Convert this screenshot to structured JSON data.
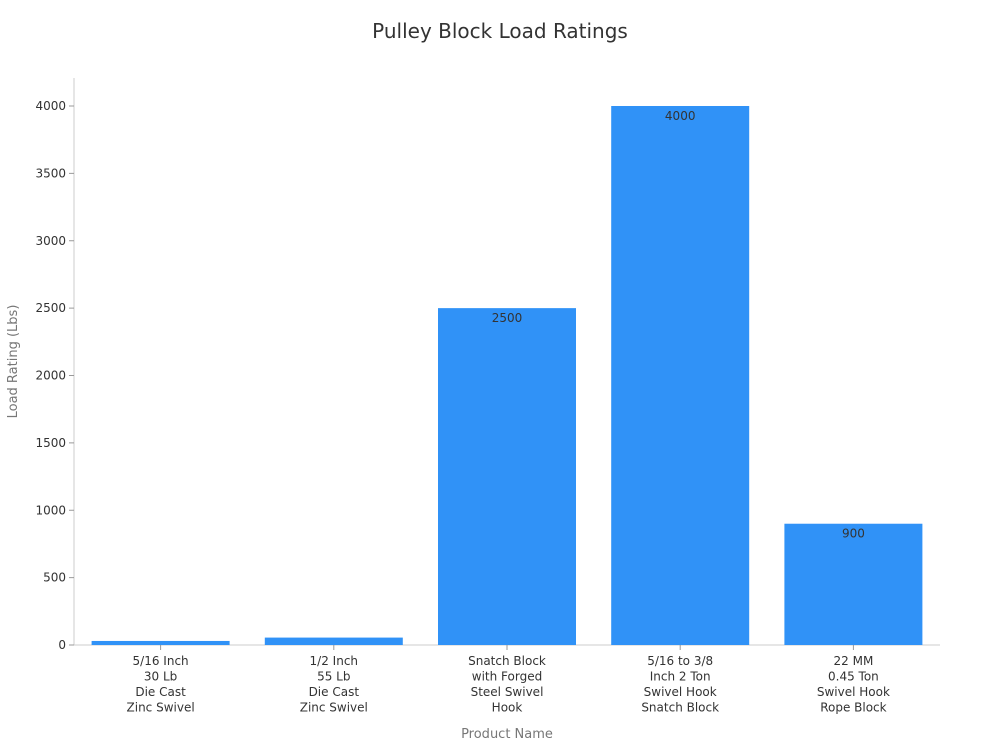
{
  "chart_data": {
    "type": "bar",
    "title": "Pulley Block Load Ratings",
    "xlabel": "Product Name",
    "ylabel": "Load Rating (Lbs)",
    "categories": [
      [
        "5/16 Inch",
        "30 Lb",
        "Die Cast",
        "Zinc Swivel"
      ],
      [
        "1/2 Inch",
        "55 Lb",
        "Die Cast",
        "Zinc Swivel"
      ],
      [
        "Snatch Block",
        "with Forged",
        "Steel Swivel",
        "Hook"
      ],
      [
        "5/16 to 3/8",
        "Inch 2 Ton",
        "Swivel Hook",
        "Snatch Block"
      ],
      [
        "22 MM",
        "0.45 Ton",
        "Swivel Hook",
        "Rope Block"
      ]
    ],
    "values": [
      30,
      55,
      2500,
      4000,
      900
    ],
    "data_labels": [
      "",
      "",
      "2500",
      "4000",
      "900"
    ],
    "ylim": [
      0,
      4200
    ],
    "yticks": [
      0,
      500,
      1000,
      1500,
      2000,
      2500,
      3000,
      3500,
      4000
    ],
    "bar_color": "#3092f7",
    "grid": false,
    "legend": "none"
  }
}
